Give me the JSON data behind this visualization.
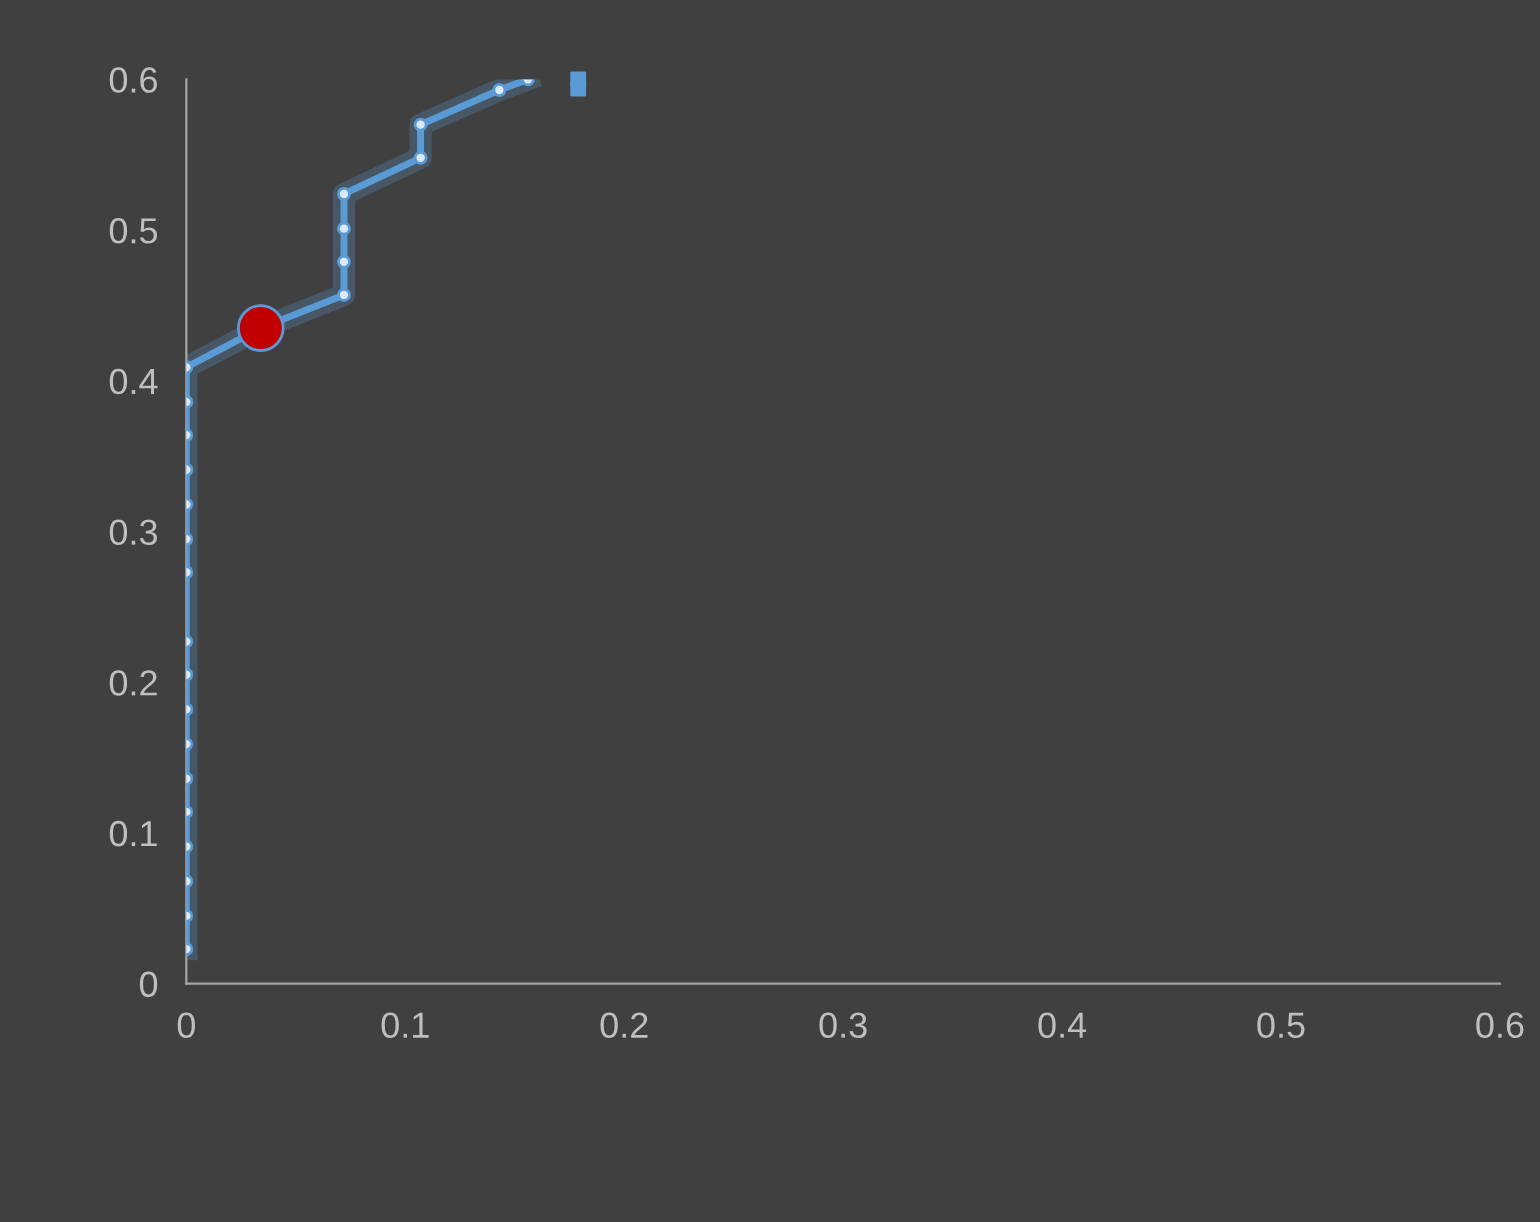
{
  "chart_data": {
    "type": "line",
    "marker": "circle",
    "grid": false,
    "xlim": [
      0,
      0.6
    ],
    "xticks": [
      0,
      0.1,
      0.2,
      0.3,
      0.4,
      0.5,
      0.6
    ],
    "ylim": [
      0,
      0.6
    ],
    "yticks": [
      0,
      0.1,
      0.2,
      0.3,
      0.4,
      0.5,
      0.6
    ],
    "series": [
      {
        "color": "#5b9bd5",
        "x": [
          0,
          0,
          0,
          0,
          0,
          0,
          0,
          0,
          0,
          0,
          0,
          0,
          0,
          0,
          0,
          0,
          0,
          0.034,
          0.072,
          0.072,
          0.072,
          0.072,
          0.107,
          0.107,
          0.143,
          0.156
        ],
        "values": [
          0.023,
          0.045,
          0.068,
          0.091,
          0.114,
          0.136,
          0.159,
          0.182,
          0.205,
          0.227,
          0.273,
          0.295,
          0.318,
          0.341,
          0.364,
          0.386,
          0.409,
          0.435,
          0.457,
          0.479,
          0.501,
          0.524,
          0.548,
          0.57,
          0.593,
          0.6
        ]
      },
      {
        "type": "scatter",
        "marker": "square",
        "color": "#5b9bd5",
        "x": [
          0.179,
          0.179
        ],
        "values": [
          0.6,
          0.594
        ]
      },
      {
        "type": "scatter",
        "color": "#c00000",
        "x": [
          0.034
        ],
        "values": [
          0.435
        ]
      }
    ]
  }
}
